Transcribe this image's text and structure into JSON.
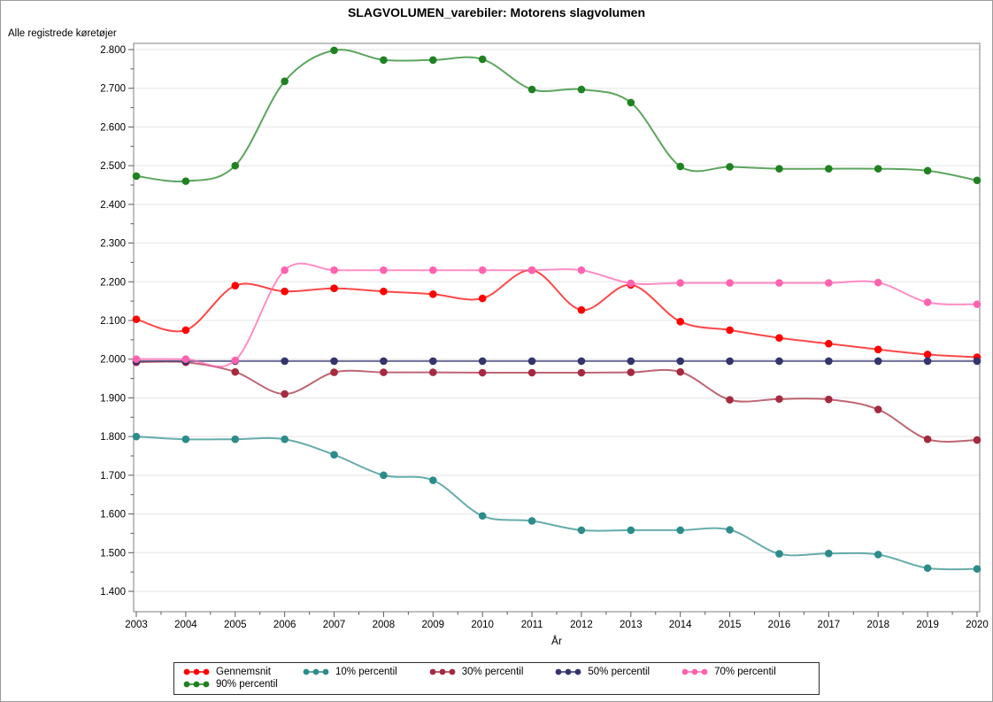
{
  "title": "SLAGVOLUMEN_varebiler: Motorens slagvolumen",
  "axis_note": "Alle registrede køretøjer",
  "xlabel": "År",
  "chart_data": {
    "type": "line",
    "title": "SLAGVOLUMEN_varebiler: Motorens slagvolumen",
    "ylabel": "Alle registrede køretøjer",
    "xlabel": "År",
    "grid": "horizontal",
    "legend_position": "bottom",
    "ylim": [
      1400,
      2800
    ],
    "x": [
      2003,
      2004,
      2005,
      2006,
      2007,
      2008,
      2009,
      2010,
      2011,
      2012,
      2013,
      2014,
      2015,
      2016,
      2017,
      2018,
      2019,
      2020
    ],
    "y_ticks": [
      {
        "value": 2800,
        "label": "2.800"
      },
      {
        "value": 2700,
        "label": "2.700"
      },
      {
        "value": 2600,
        "label": "2.600"
      },
      {
        "value": 2500,
        "label": "2.500"
      },
      {
        "value": 2400,
        "label": "2.400"
      },
      {
        "value": 2300,
        "label": "2.300"
      },
      {
        "value": 2200,
        "label": "2.200"
      },
      {
        "value": 2100,
        "label": "2.100"
      },
      {
        "value": 2000,
        "label": "2.000"
      },
      {
        "value": 1900,
        "label": "1.900"
      },
      {
        "value": 1800,
        "label": "1.800"
      },
      {
        "value": 1700,
        "label": "1.700"
      },
      {
        "value": 1600,
        "label": "1.600"
      },
      {
        "value": 1500,
        "label": "1.500"
      },
      {
        "value": 1400,
        "label": "1.400"
      }
    ],
    "series": [
      {
        "name": "Gennemsnit",
        "color": "#FF0000",
        "values": [
          2103,
          2075,
          2190,
          2175,
          2183,
          2175,
          2168,
          2157,
          2230,
          2127,
          2192,
          2097,
          2075,
          2055,
          2040,
          2025,
          2012,
          2005
        ]
      },
      {
        "name": "10% percentil",
        "color": "#2B8C8B",
        "values": [
          1800,
          1793,
          1793,
          1793,
          1753,
          1700,
          1687,
          1595,
          1582,
          1558,
          1558,
          1558,
          1559,
          1497,
          1498,
          1495,
          1460,
          1458
        ]
      },
      {
        "name": "30% percentil",
        "color": "#A52A3F",
        "values": [
          1992,
          1992,
          1967,
          1910,
          1966,
          1966,
          1966,
          1965,
          1965,
          1965,
          1966,
          1967,
          1895,
          1897,
          1896,
          1870,
          1793,
          1791
        ]
      },
      {
        "name": "50% percentil",
        "color": "#34346E",
        "values": [
          1995,
          1995,
          1995,
          1995,
          1995,
          1995,
          1995,
          1995,
          1995,
          1995,
          1995,
          1995,
          1995,
          1995,
          1995,
          1995,
          1995,
          1995
        ]
      },
      {
        "name": "70% percentil",
        "color": "#FF63B0",
        "values": [
          2000,
          2000,
          1997,
          2230,
          2230,
          2230,
          2230,
          2230,
          2230,
          2230,
          2196,
          2197,
          2197,
          2197,
          2197,
          2198,
          2147,
          2142
        ]
      },
      {
        "name": "90% percentil",
        "color": "#1E8220",
        "values": [
          2473,
          2460,
          2500,
          2718,
          2798,
          2773,
          2773,
          2775,
          2697,
          2697,
          2663,
          2498,
          2497,
          2492,
          2492,
          2492,
          2487,
          2462
        ]
      }
    ]
  },
  "colors": {
    "gridline": "#e5e5e5",
    "frame": "#808080",
    "tick": "#595959"
  }
}
